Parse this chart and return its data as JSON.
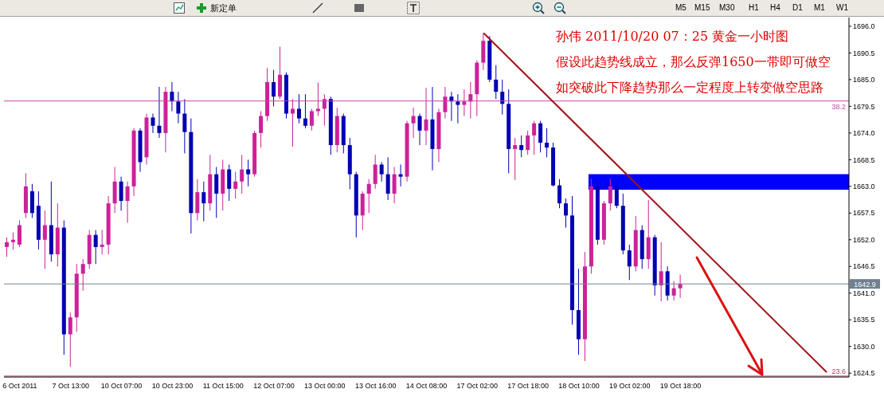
{
  "chart_data": {
    "type": "candlestick",
    "categories": [
      null,
      null,
      "6 Oct 2011",
      null,
      null,
      null,
      null,
      null,
      null,
      null,
      "7 Oct 13:00",
      null,
      null,
      null,
      null,
      null,
      null,
      null,
      "10 Oct 07:00",
      null,
      null,
      null,
      null,
      null,
      null,
      null,
      "10 Oct 23:00",
      null,
      null,
      null,
      null,
      null,
      null,
      null,
      "11 Oct 15:00",
      null,
      null,
      null,
      null,
      null,
      null,
      null,
      "12 Oct 07:00",
      null,
      null,
      null,
      null,
      null,
      null,
      null,
      "13 Oct 00:00",
      null,
      null,
      null,
      null,
      null,
      null,
      null,
      "13 Oct 16:00",
      null,
      null,
      null,
      null,
      null,
      null,
      null,
      "14 Oct 08:00",
      null,
      null,
      null,
      null,
      null,
      null,
      null,
      "17 Oct 02:00",
      null,
      null,
      null,
      null,
      null,
      null,
      null,
      "17 Oct 18:00",
      null,
      null,
      null,
      null,
      null,
      null,
      null,
      "18 Oct 10:00",
      null,
      null,
      null,
      null,
      null,
      null,
      null,
      "19 Oct 02:00",
      null,
      null,
      null,
      null,
      null,
      null,
      null,
      "19 Oct 18:00",
      null,
      null,
      null,
      null,
      null,
      null,
      null,
      null,
      null,
      null,
      null,
      null,
      null,
      null,
      null,
      null,
      null,
      null,
      null,
      null,
      null,
      null,
      null,
      null,
      null,
      null
    ],
    "ohlc": [
      [
        1650.5,
        1652.5,
        1648.5,
        1651.5
      ],
      [
        1651.5,
        1653.5,
        1650.0,
        1652.0
      ],
      [
        1651.0,
        1656.0,
        1650.5,
        1655.0
      ],
      [
        1657.5,
        1665.7,
        1656.5,
        1663.0
      ],
      [
        1662.0,
        1663.5,
        1656.5,
        1657.5
      ],
      [
        1659.0,
        1662.0,
        1650.0,
        1652.0
      ],
      [
        1652.0,
        1658.0,
        1646.0,
        1655.0
      ],
      [
        1655.0,
        1664.0,
        1647.5,
        1649.0
      ],
      [
        1649.0,
        1659.5,
        1646.5,
        1654.5
      ],
      [
        1654.5,
        1656.0,
        1628.3,
        1632.5
      ],
      [
        1632.5,
        1637.0,
        1625.8,
        1636.0
      ],
      [
        1636.0,
        1647.0,
        1633.0,
        1645.0
      ],
      [
        1645.0,
        1648.0,
        1641.5,
        1647.0
      ],
      [
        1647.0,
        1654.0,
        1646.0,
        1653.0
      ],
      [
        1653.0,
        1654.0,
        1647.0,
        1650.5
      ],
      [
        1650.5,
        1654.0,
        1649.0,
        1651.0
      ],
      [
        1651.0,
        1661.0,
        1649.0,
        1659.5
      ],
      [
        1659.5,
        1667.0,
        1657.5,
        1664.0
      ],
      [
        1664.0,
        1665.0,
        1658.0,
        1660.0
      ],
      [
        1660.0,
        1664.0,
        1655.5,
        1663.0
      ],
      [
        1663.0,
        1675.0,
        1661.0,
        1674.5
      ],
      [
        1674.5,
        1675.0,
        1666.0,
        1668.0
      ],
      [
        1669.0,
        1678.0,
        1667.5,
        1677.2
      ],
      [
        1677.2,
        1678.0,
        1674.0,
        1675.5
      ],
      [
        1675.5,
        1683.5,
        1673.0,
        1674.0
      ],
      [
        1674.0,
        1683.5,
        1670.0,
        1682.5
      ],
      [
        1682.5,
        1684.5,
        1678.5,
        1680.5
      ],
      [
        1680.5,
        1682.5,
        1676.0,
        1678.0
      ],
      [
        1678.0,
        1681.0,
        1669.8,
        1674.2
      ],
      [
        1674.2,
        1677.0,
        1653.3,
        1657.5
      ],
      [
        1657.5,
        1664.5,
        1656.0,
        1661.8
      ],
      [
        1661.8,
        1664.0,
        1655.8,
        1659.5
      ],
      [
        1659.5,
        1669.5,
        1658.0,
        1665.5
      ],
      [
        1665.5,
        1667.0,
        1656.5,
        1661.5
      ],
      [
        1661.5,
        1668.5,
        1658.0,
        1666.5
      ],
      [
        1666.5,
        1667.5,
        1660.0,
        1662.5
      ],
      [
        1662.5,
        1666.0,
        1660.5,
        1664.0
      ],
      [
        1664.0,
        1669.5,
        1661.5,
        1666.5
      ],
      [
        1666.5,
        1668.5,
        1663.0,
        1665.5
      ],
      [
        1665.5,
        1674.5,
        1665.0,
        1674.0
      ],
      [
        1674.0,
        1678.5,
        1671.0,
        1677.5
      ],
      [
        1677.5,
        1687.4,
        1676.5,
        1684.5
      ],
      [
        1684.5,
        1687.0,
        1679.5,
        1681.5
      ],
      [
        1681.5,
        1691.8,
        1681.0,
        1686.0
      ],
      [
        1686.0,
        1686.5,
        1677.0,
        1678.0
      ],
      [
        1678.0,
        1681.0,
        1671.2,
        1679.0
      ],
      [
        1679.0,
        1682.0,
        1676.0,
        1677.0
      ],
      [
        1677.0,
        1682.0,
        1675.0,
        1675.5
      ],
      [
        1675.5,
        1679.0,
        1674.5,
        1678.5
      ],
      [
        1678.5,
        1684.4,
        1677.5,
        1679.0
      ],
      [
        1679.0,
        1682.0,
        1675.5,
        1681.0
      ],
      [
        1681.0,
        1681.5,
        1669.5,
        1671.5
      ],
      [
        1671.5,
        1679.2,
        1670.0,
        1677.5
      ],
      [
        1677.5,
        1678.0,
        1669.8,
        1671.5
      ],
      [
        1671.5,
        1673.0,
        1662.4,
        1665.5
      ],
      [
        1665.5,
        1666.0,
        1652.5,
        1657.0
      ],
      [
        1657.0,
        1662.0,
        1654.0,
        1661.5
      ],
      [
        1661.5,
        1664.5,
        1657.5,
        1663.5
      ],
      [
        1663.5,
        1669.5,
        1662.5,
        1667.5
      ],
      [
        1667.5,
        1668.0,
        1664.0,
        1665.5
      ],
      [
        1665.5,
        1669.0,
        1660.2,
        1661.5
      ],
      [
        1661.5,
        1667.0,
        1659.5,
        1665.5
      ],
      [
        1665.5,
        1667.5,
        1663.0,
        1665.0
      ],
      [
        1665.0,
        1676.5,
        1664.0,
        1676.0
      ],
      [
        1676.0,
        1679.2,
        1673.0,
        1677.5
      ],
      [
        1677.5,
        1678.0,
        1671.5,
        1674.5
      ],
      [
        1674.5,
        1683.3,
        1671.5,
        1676.8
      ],
      [
        1676.8,
        1683.5,
        1666.3,
        1670.7
      ],
      [
        1670.7,
        1679.0,
        1668.0,
        1678.3
      ],
      [
        1678.3,
        1683.5,
        1677.0,
        1681.5
      ],
      [
        1681.5,
        1682.5,
        1676.5,
        1680.5
      ],
      [
        1680.5,
        1682.0,
        1676.0,
        1679.8
      ],
      [
        1679.8,
        1683.0,
        1677.5,
        1680.5
      ],
      [
        1680.5,
        1684.5,
        1677.0,
        1682.0
      ],
      [
        1682.0,
        1689.0,
        1677.5,
        1688.5
      ],
      [
        1688.5,
        1694.6,
        1687.0,
        1693.0
      ],
      [
        1693.0,
        1694.0,
        1684.5,
        1685.0
      ],
      [
        1685.0,
        1688.0,
        1681.0,
        1682.5
      ],
      [
        1682.5,
        1685.0,
        1677.8,
        1680.0
      ],
      [
        1680.0,
        1683.0,
        1665.7,
        1670.7
      ],
      [
        1670.7,
        1673.0,
        1664.3,
        1671.5
      ],
      [
        1671.5,
        1673.5,
        1669.0,
        1670.5
      ],
      [
        1670.5,
        1674.5,
        1669.5,
        1673.5
      ],
      [
        1673.5,
        1676.5,
        1669.5,
        1676.0
      ],
      [
        1676.0,
        1676.5,
        1670.0,
        1672.0
      ],
      [
        1672.0,
        1675.0,
        1669.0,
        1671.0
      ],
      [
        1671.0,
        1672.0,
        1663.0,
        1663.2
      ],
      [
        1663.2,
        1664.5,
        1658.5,
        1659.5
      ],
      [
        1659.5,
        1660.5,
        1654.5,
        1657.0
      ],
      [
        1657.0,
        1661.0,
        1634.5,
        1637.5
      ],
      [
        1637.5,
        1646.0,
        1628.3,
        1631.5
      ],
      [
        1631.5,
        1649.5,
        1627.0,
        1646.5
      ],
      [
        1646.5,
        1664.6,
        1645.0,
        1663.0
      ],
      [
        1663.0,
        1664.0,
        1651.0,
        1652.0
      ],
      [
        1652.0,
        1660.0,
        1651.0,
        1659.5
      ],
      [
        1659.5,
        1664.6,
        1658.0,
        1663.0
      ],
      [
        1663.0,
        1664.0,
        1658.5,
        1659.0
      ],
      [
        1659.0,
        1661.5,
        1649.0,
        1649.8
      ],
      [
        1649.8,
        1651.0,
        1643.7,
        1646.5
      ],
      [
        1646.5,
        1656.9,
        1645.5,
        1654.0
      ],
      [
        1654.0,
        1655.0,
        1646.0,
        1648.0
      ],
      [
        1648.0,
        1660.2,
        1646.0,
        1652.5
      ],
      [
        1652.5,
        1653.0,
        1640.5,
        1642.6
      ],
      [
        1642.6,
        1651.5,
        1639.3,
        1645.5
      ],
      [
        1645.5,
        1646.5,
        1639.5,
        1640.5
      ],
      [
        1640.5,
        1643.5,
        1639.5,
        1642.0
      ],
      [
        1642.0,
        1644.8,
        1640.0,
        1642.9
      ],
      null,
      null,
      null,
      null,
      null,
      null,
      null,
      null,
      null,
      null,
      null,
      null,
      null,
      null,
      null,
      null,
      null,
      null,
      null,
      null,
      null,
      null,
      null,
      null,
      null,
      null
    ],
    "colors": [
      "#cc2299",
      "#cc2299",
      "#cc2299",
      "#cc2299",
      "#0000b4",
      "#0000b4",
      "#cc2299",
      "#0000b4",
      "#cc2299",
      "#0000b4",
      "#cc2299",
      "#cc2299",
      "#cc2299",
      "#cc2299",
      "#0000b4",
      "#cc2299",
      "#cc2299",
      "#cc2299",
      "#0000b4",
      "#cc2299",
      "#cc2299",
      "#0000b4",
      "#cc2299",
      "#0000b4",
      "#0000b4",
      "#cc2299",
      "#0000b4",
      "#0000b4",
      "#0000b4",
      "#0000b4",
      "#cc2299",
      "#0000b4",
      "#cc2299",
      "#0000b4",
      "#cc2299",
      "#0000b4",
      "#cc2299",
      "#cc2299",
      "#0000b4",
      "#cc2299",
      "#cc2299",
      "#cc2299",
      "#0000b4",
      "#cc2299",
      "#0000b4",
      "#cc2299",
      "#0000b4",
      "#0000b4",
      "#cc2299",
      "#cc2299",
      "#cc2299",
      "#0000b4",
      "#cc2299",
      "#0000b4",
      "#0000b4",
      "#0000b4",
      "#cc2299",
      "#cc2299",
      "#cc2299",
      "#0000b4",
      "#0000b4",
      "#cc2299",
      "#0000b4",
      "#cc2299",
      "#cc2299",
      "#0000b4",
      "#cc2299",
      "#0000b4",
      "#cc2299",
      "#cc2299",
      "#0000b4",
      "#0000b4",
      "#cc2299",
      "#cc2299",
      "#cc2299",
      "#cc2299",
      "#0000b4",
      "#0000b4",
      "#0000b4",
      "#0000b4",
      "#cc2299",
      "#0000b4",
      "#cc2299",
      "#cc2299",
      "#0000b4",
      "#0000b4",
      "#0000b4",
      "#0000b4",
      "#0000b4",
      "#0000b4",
      "#0000b4",
      "#cc2299",
      "#cc2299",
      "#0000b4",
      "#cc2299",
      "#cc2299",
      "#0000b4",
      "#0000b4",
      "#0000b4",
      "#cc2299",
      "#0000b4",
      "#cc2299",
      "#0000b4",
      "#cc2299",
      "#0000b4",
      "#cc2299",
      "#cc2299",
      null,
      null,
      null,
      null,
      null,
      null,
      null,
      null,
      null,
      null,
      null,
      null,
      null,
      null,
      null,
      null,
      null,
      null,
      null,
      null,
      null,
      null,
      null,
      null,
      null,
      null
    ],
    "series": [
      {
        "type": "line",
        "color": "#a01418",
        "values": [
          null,
          null,
          null,
          null,
          null,
          null,
          null,
          null,
          null,
          null,
          null,
          null,
          null,
          null,
          null,
          null,
          null,
          null,
          null,
          null,
          null,
          null,
          null,
          null,
          null,
          null,
          null,
          null,
          null,
          null,
          null,
          null,
          null,
          null,
          null,
          null,
          null,
          null,
          null,
          null,
          null,
          null,
          null,
          null,
          null,
          null,
          null,
          null,
          null,
          null,
          null,
          null,
          null,
          null,
          null,
          null,
          null,
          null,
          null,
          null,
          null,
          null,
          null,
          null,
          null,
          null,
          null,
          null,
          null,
          null,
          null,
          null,
          null,
          null,
          null,
          1694.6,
          null,
          null,
          null,
          null,
          null,
          null,
          null,
          null,
          null,
          null,
          null,
          null,
          null,
          null,
          null,
          null,
          null,
          null,
          null,
          null,
          null,
          null,
          null,
          null,
          null,
          null,
          null,
          null,
          null,
          null,
          null,
          null,
          null,
          null,
          null,
          null,
          null,
          null,
          null,
          null,
          null,
          null,
          null,
          null,
          null,
          null,
          null,
          null,
          null,
          null,
          null,
          null,
          null,
          1624.7,
          null,
          null,
          null
        ]
      }
    ],
    "ylim": [
      1623.7,
      1697.8
    ],
    "yticks": [
      {
        "value": 1696,
        "label": "1696.0"
      },
      {
        "value": 1690.5,
        "label": "1690.5"
      },
      {
        "value": 1685,
        "label": "1685.0"
      },
      {
        "value": 1679.5,
        "label": "1679.5"
      },
      {
        "value": 1674,
        "label": "1674.0"
      },
      {
        "value": 1668.5,
        "label": "1668.5"
      },
      {
        "value": 1663,
        "label": "1663.0"
      },
      {
        "value": 1657.5,
        "label": "1657.5"
      },
      {
        "value": 1652,
        "label": "1652.0"
      },
      {
        "value": 1646.5,
        "label": "1646.5"
      },
      {
        "value": 1641,
        "label": "1641.0"
      },
      {
        "value": 1635.5,
        "label": "1635.5"
      },
      {
        "value": 1630,
        "label": "1630.0"
      },
      {
        "value": 1624.5,
        "label": "1624.5"
      }
    ],
    "ref_lines": [
      {
        "axis": "y",
        "value": 1680.6,
        "color": "#cc44aa"
      },
      {
        "axis": "y",
        "value": 1623.9,
        "color": "#cc3366"
      },
      {
        "axis": "y",
        "value": 1642.9,
        "label": "1642.9",
        "color": "#708090"
      }
    ],
    "bands": [
      {
        "axis": "y",
        "from": 1662.3,
        "to": 1665.5,
        "color": "#0000ff"
      }
    ],
    "annotations": [
      "孙伟  2011/10/20 07：25  黄金一小时图",
      "假设此趋势线成立，那么反弹1650一带即可做空",
      "如突破此下降趋势那么一定程度上转变做空思路",
      "新定单",
      "M5",
      "M15",
      "M30",
      "H1",
      "H4",
      "D1",
      "M1",
      "W1",
      {
        "text": "38.2",
        "y": 1680.6
      },
      {
        "text": "23.6",
        "y": 1623.9
      }
    ]
  }
}
